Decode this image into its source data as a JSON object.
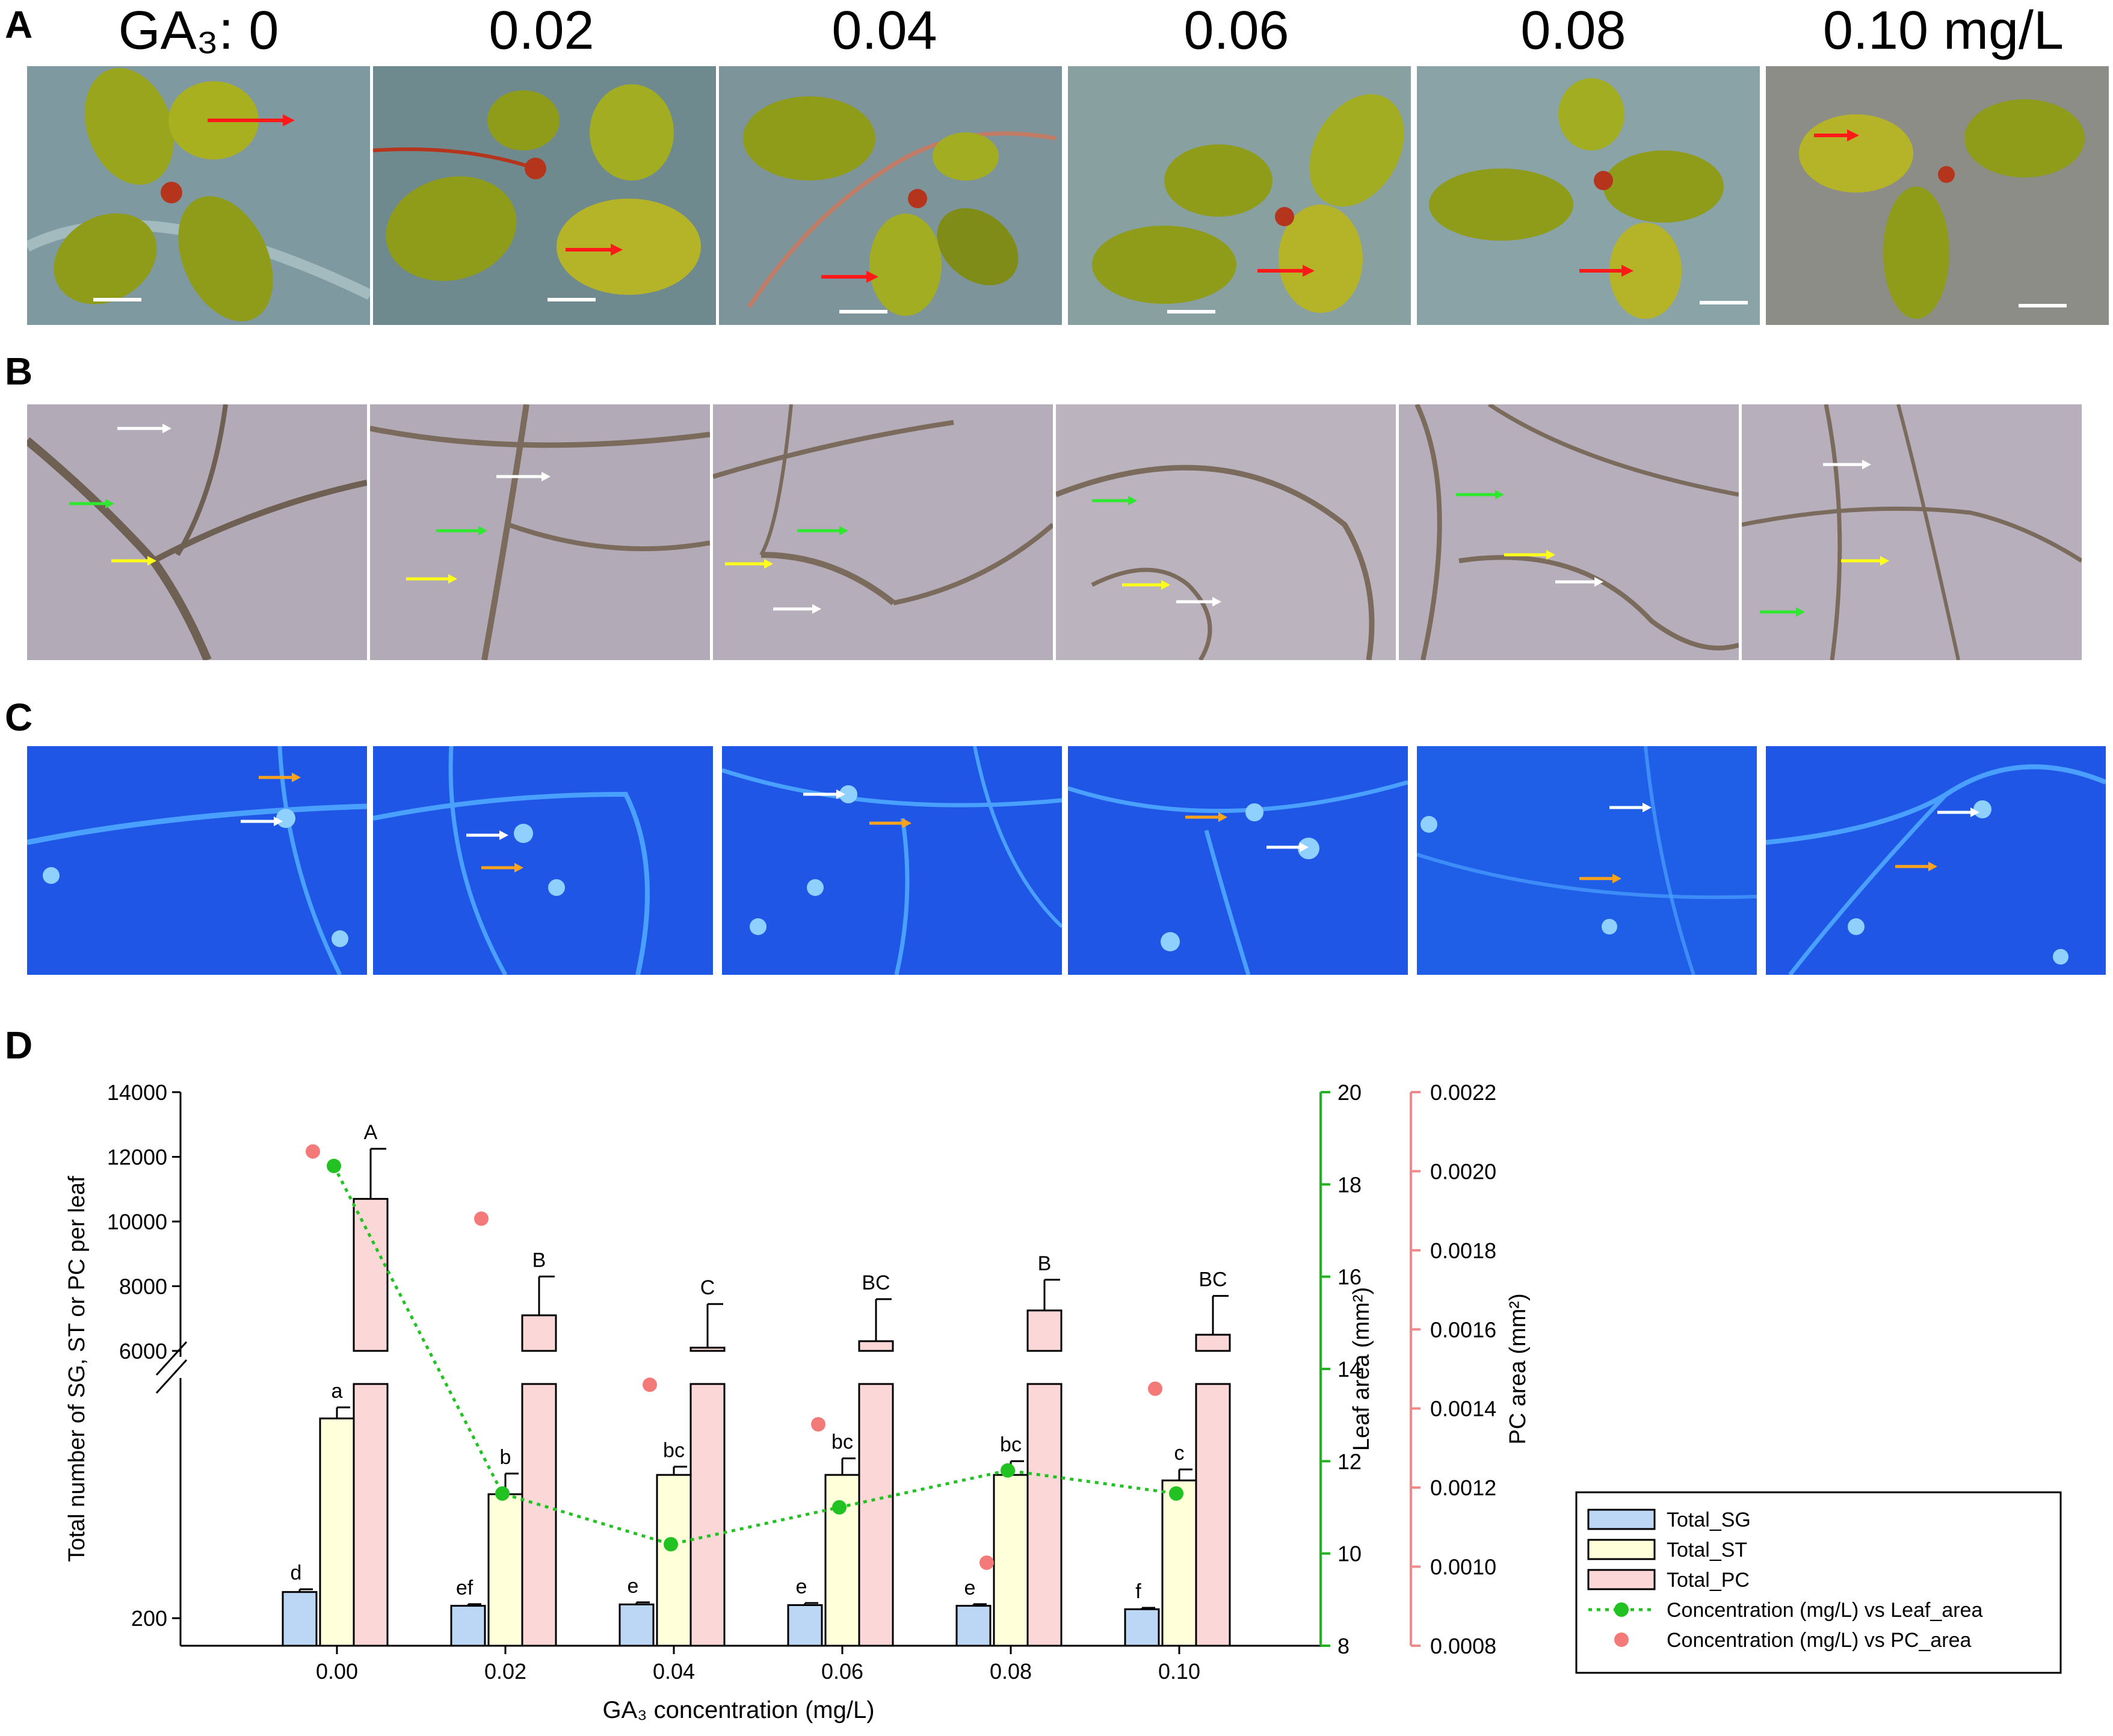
{
  "panels": {
    "A": {
      "letter": "A",
      "concentration_labels": [
        "GA₃: 0",
        "0.02",
        "0.04",
        "0.06",
        "0.08",
        "0.10 mg/L"
      ]
    },
    "B": {
      "letter": "B"
    },
    "C": {
      "letter": "C"
    },
    "D": {
      "letter": "D"
    }
  },
  "colors": {
    "panelA_bg": "#7e9aa0",
    "leaf": "#9aa51e",
    "leaf_dark": "#5e6a12",
    "stem": "#b4351c",
    "panelB_bg": "#b3aab8",
    "vein_B": "#6e6153",
    "panelC_bg": "#1f56e6",
    "vein_C": "#4aa0ff",
    "arrow_red": "#ff1a1a",
    "arrow_white": "#ffffff",
    "arrow_green": "#2ee82e",
    "arrow_yellow": "#ffff1a",
    "arrow_orange": "#ffa31a",
    "bar_SG": "#bcd7f5",
    "bar_ST": "#ffffd9",
    "bar_PC": "#fcd7d7",
    "line_leaf": "#22c222",
    "dot_pc": "#f47a7a",
    "axis_green": "#22b222",
    "axis_pink": "#f08a8a"
  },
  "chart_data": {
    "type": "bar",
    "xlabel": "GA₃ concentration (mg/L)",
    "ylabel": "Total number of SG, ST or PC per leaf",
    "y2label": "Leaf area (mm²)",
    "y3label": "PC area (mm²)",
    "categories": [
      "0.00",
      "0.02",
      "0.04",
      "0.06",
      "0.08",
      "0.10"
    ],
    "left_axis_upper_ticks": [
      "6000",
      "8000",
      "10000",
      "12000",
      "14000"
    ],
    "left_axis_lower_ticks": [
      "200"
    ],
    "y2_ticks": [
      "8",
      "10",
      "12",
      "14",
      "16",
      "18",
      "20"
    ],
    "y3_ticks": [
      "0.0008",
      "0.0010",
      "0.0012",
      "0.0014",
      "0.0016",
      "0.0018",
      "0.0020",
      "0.0022"
    ],
    "axis_break": true,
    "ylim_upper": [
      6000,
      14000
    ],
    "ylim_y2": [
      8,
      20
    ],
    "ylim_y3": [
      0.0008,
      0.0022
    ],
    "series": [
      {
        "name": "Total_SG",
        "values": [
          390,
          290,
          300,
          295,
          290,
          265
        ],
        "errors": [
          20,
          12,
          15,
          15,
          12,
          10
        ],
        "letters": [
          "d",
          "ef",
          "e",
          "e",
          "e",
          "f"
        ]
      },
      {
        "name": "Total_ST",
        "values": [
          1650,
          1100,
          1240,
          1240,
          1240,
          1200
        ],
        "errors": [
          80,
          150,
          60,
          120,
          100,
          80
        ],
        "letters": [
          "a",
          "b",
          "bc",
          "bc",
          "bc",
          "c"
        ]
      },
      {
        "name": "Total_PC",
        "values": [
          10700,
          7100,
          6100,
          6300,
          7250,
          6500
        ],
        "errors": [
          1550,
          1200,
          1350,
          1300,
          950,
          1200
        ],
        "letters": [
          "A",
          "B",
          "C",
          "BC",
          "B",
          "BC"
        ]
      }
    ],
    "leaf_area": {
      "name": "Concentration (mg/L) vs Leaf_area",
      "values": [
        18.4,
        11.3,
        10.2,
        11.0,
        11.8,
        11.3
      ]
    },
    "pc_area": {
      "name": "Concentration (mg/L) vs PC_area",
      "values": [
        0.00205,
        0.00188,
        0.00146,
        0.00136,
        0.00101,
        0.00145
      ]
    },
    "legend": {
      "placement": "bottom-right",
      "items": [
        "Total_SG",
        "Total_ST",
        "Total_PC",
        "Concentration (mg/L) vs Leaf_area",
        "Concentration (mg/L) vs PC_area"
      ]
    }
  }
}
